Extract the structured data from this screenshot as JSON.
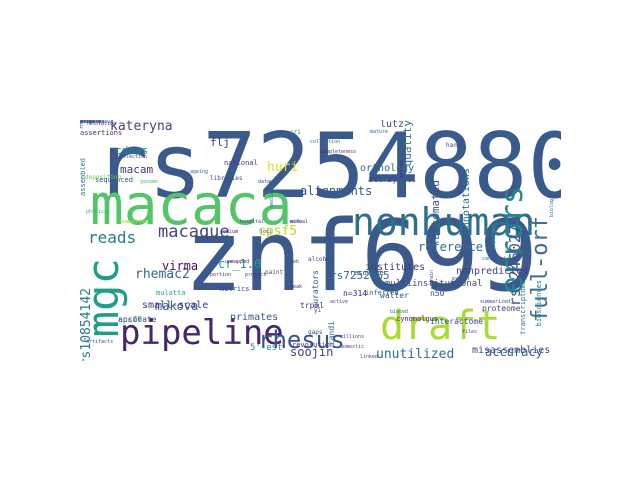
{
  "word_cloud": {
    "words": [
      {
        "text": "rs7254880",
        "color": "#3b5a8c"
      },
      {
        "text": "znf699",
        "color": "#3b5a8c"
      },
      {
        "text": "macaca",
        "color": "#52c569"
      },
      {
        "text": "nonhuman",
        "color": "#2f6f8e"
      },
      {
        "text": "pipeline",
        "color": "#46266f"
      },
      {
        "text": "draft",
        "color": "#a8db34"
      },
      {
        "text": "mgc",
        "color": "#1f9e89"
      },
      {
        "text": "full-orf",
        "color": "#3e6d8e"
      },
      {
        "text": "errors",
        "color": "#25848e"
      },
      {
        "text": "rhesus",
        "color": "#3a538b"
      },
      {
        "text": "reads",
        "color": "#2a7b8e"
      },
      {
        "text": "macaque",
        "color": "#3f4889"
      },
      {
        "text": "kateryna",
        "color": "#414487"
      },
      {
        "text": "rs12460279",
        "color": "#3b528b"
      },
      {
        "text": "rs10854142",
        "color": "#2a788e"
      },
      {
        "text": "accuracy",
        "color": "#355f8d"
      },
      {
        "text": "unutilized",
        "color": "#2c718e"
      },
      {
        "text": "misassemblies",
        "color": "#3e4a89"
      },
      {
        "text": "soojin",
        "color": "#433e85"
      },
      {
        "text": "makova",
        "color": "#33638d"
      },
      {
        "text": "rhemac2",
        "color": "#31688e"
      },
      {
        "text": "virma",
        "color": "#471063"
      },
      {
        "text": "cpsf5",
        "color": "#b5de2b"
      },
      {
        "text": "rs7252865",
        "color": "#306a8e"
      },
      {
        "text": "reference",
        "color": "#2d708e"
      },
      {
        "text": "alignments",
        "color": "#38588c"
      },
      {
        "text": "huri",
        "color": "#d8e219"
      },
      {
        "text": "cr_1.0",
        "color": "#1fa088"
      },
      {
        "text": "quality",
        "color": "#2b758e"
      },
      {
        "text": "annotations",
        "color": "#2e6e8e"
      },
      {
        "text": "automated",
        "color": "#3a548c"
      },
      {
        "text": "cdnas",
        "color": "#238a8d"
      },
      {
        "text": "macam",
        "color": "#46337e"
      },
      {
        "text": "flj",
        "color": "#472f7d"
      },
      {
        "text": "orthology",
        "color": "#2f6c8e"
      },
      {
        "text": "lutz",
        "color": "#404688"
      },
      {
        "text": "all-by-all",
        "color": "#3c508b"
      },
      {
        "text": "nonpredicted",
        "color": "#424086"
      },
      {
        "text": "institutes",
        "color": "#443983"
      },
      {
        "text": "multiinstitutional",
        "color": "#3d4d8a"
      },
      {
        "text": "small-scale",
        "color": "#453581"
      },
      {
        "text": "accurate",
        "color": "#3d4e8a"
      },
      {
        "text": "primates",
        "color": "#375a8c"
      },
      {
        "text": "5'-est",
        "color": "#1f958b"
      },
      {
        "text": "trpml",
        "color": "#46307e"
      },
      {
        "text": "curators",
        "color": "#3a548c"
      },
      {
        "text": "n=314",
        "color": "#482677"
      },
      {
        "text": "walter",
        "color": "#39568c"
      },
      {
        "text": "cpsf6",
        "color": "#2a778e"
      },
      {
        "text": "assembled",
        "color": "#287c8e"
      },
      {
        "text": "sequenced",
        "color": "#3b518b"
      },
      {
        "text": "mulatta",
        "color": "#22a884"
      },
      {
        "text": "metrics",
        "color": "#3f4788"
      },
      {
        "text": "revolution",
        "color": "#414287"
      },
      {
        "text": "proteome",
        "color": "#404588"
      },
      {
        "text": "candi",
        "color": "#2c728e"
      },
      {
        "text": "n50",
        "color": "#3e4c8a"
      },
      {
        "text": "interactome",
        "color": "#3c4f8a"
      },
      {
        "text": "inferred",
        "color": "#33638d"
      },
      {
        "text": "cynomolgus",
        "color": "#481769"
      },
      {
        "text": "transcriptome",
        "color": "#2d718e"
      },
      {
        "text": "biosciences",
        "color": "#277f8e"
      },
      {
        "text": "resource",
        "color": "#3a548c"
      },
      {
        "text": "national",
        "color": "#453882"
      },
      {
        "text": "assertions",
        "color": "#472d7b"
      },
      {
        "text": "paint",
        "color": "#3c4f8a"
      },
      {
        "text": "depositing",
        "color": "#6ccd5a"
      },
      {
        "text": "libraries",
        "color": "#404588"
      },
      {
        "text": "cri",
        "color": "#2a768e"
      },
      {
        "text": "alcohol",
        "color": "#3e4989"
      },
      {
        "text": "mammalian",
        "color": "#a0da39"
      },
      {
        "text": "physical",
        "color": "#35b779"
      },
      {
        "text": "genome",
        "color": "#4ac16d"
      },
      {
        "text": "hang",
        "color": "#3f4788"
      },
      {
        "text": "collection",
        "color": "#31688e"
      },
      {
        "text": "completeness",
        "color": "#46327e"
      },
      {
        "text": "artifacts",
        "color": "#3b528b"
      },
      {
        "text": "kingdoms",
        "color": "#2d708e"
      },
      {
        "text": "selection",
        "color": "#3e4989"
      },
      {
        "text": "unmapped",
        "color": "#482475"
      },
      {
        "text": "yi",
        "color": "#3b528b"
      },
      {
        "text": "gaps",
        "color": "#414487"
      },
      {
        "text": "portion",
        "color": "#46337e"
      },
      {
        "text": "project",
        "color": "#443983"
      },
      {
        "text": "expanded",
        "color": "#1f948c"
      },
      {
        "text": "biologist",
        "color": "#35608d"
      },
      {
        "text": "current",
        "color": "#3a548c"
      },
      {
        "text": "domestic",
        "color": "#3e4a89"
      },
      {
        "text": "millions",
        "color": "#3b518b"
      },
      {
        "text": "files",
        "color": "#3e4a89"
      },
      {
        "text": "export",
        "color": "#39568c"
      },
      {
        "text": "summarized",
        "color": "#3f4788"
      },
      {
        "text": "peak",
        "color": "#472f7d"
      },
      {
        "text": "linked",
        "color": "#3c4f8a"
      },
      {
        "text": "primary",
        "color": "#3b528b"
      },
      {
        "text": "cerebral",
        "color": "#2d708e"
      },
      {
        "text": "resolution",
        "color": "#482677"
      },
      {
        "text": "kangaroo",
        "color": "#3e4989"
      },
      {
        "text": "ageing",
        "color": "#31688e"
      },
      {
        "text": "data",
        "color": "#404588"
      },
      {
        "text": "web",
        "color": "#3b528b"
      },
      {
        "text": "biased",
        "color": "#2a788e"
      },
      {
        "text": "active",
        "color": "#3e4a89"
      },
      {
        "text": "mutual",
        "color": "#46337e"
      },
      {
        "text": "mature",
        "color": "#31688e"
      },
      {
        "text": "sodium",
        "color": "#482878"
      },
      {
        "text": "brain",
        "color": "#3e4989"
      },
      {
        "text": "mediation",
        "color": "#2c728e"
      },
      {
        "text": "hospital",
        "color": "#414487"
      },
      {
        "text": "public",
        "color": "#3b528b"
      },
      {
        "text": "entrez",
        "color": "#482475"
      },
      {
        "text": "loci",
        "color": "#46337e"
      },
      {
        "text": "wide",
        "color": "#3f4788"
      },
      {
        "text": "candidate",
        "color": "#33638d"
      },
      {
        "text": "cluster",
        "color": "#3a548c"
      },
      {
        "text": "rna",
        "color": "#472d7b"
      },
      {
        "text": "body",
        "color": "#3b528b"
      },
      {
        "text": "ensembl",
        "color": "#2d708e"
      },
      {
        "text": "orthologous",
        "color": "#3e4a89"
      },
      {
        "text": "sample",
        "color": "#3b528b"
      }
    ]
  }
}
